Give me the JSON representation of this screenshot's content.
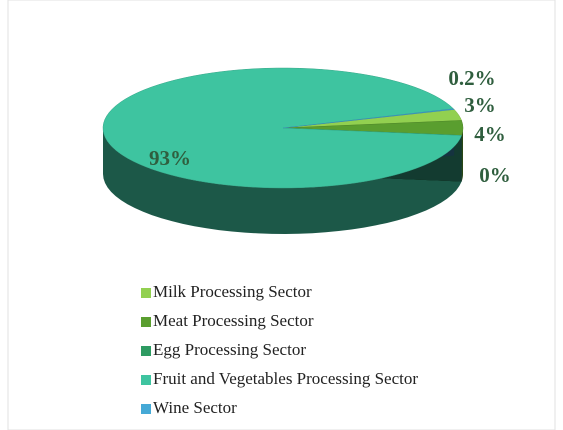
{
  "chart_data": {
    "type": "pie",
    "categories": [
      "Milk Processing Sector",
      "Meat Processing Sector",
      "Egg Processing Sector",
      "Fruit and Vegetables Processing Sector",
      "Wine Sector"
    ],
    "values": [
      3,
      4,
      0,
      93,
      0.2
    ],
    "value_labels": [
      "3%",
      "4%",
      "0%",
      "93%",
      "0.2%"
    ],
    "colors": [
      "#92d050",
      "#5a9e2f",
      "#2e9b62",
      "#3ec4a0",
      "#45a9d6"
    ]
  }
}
